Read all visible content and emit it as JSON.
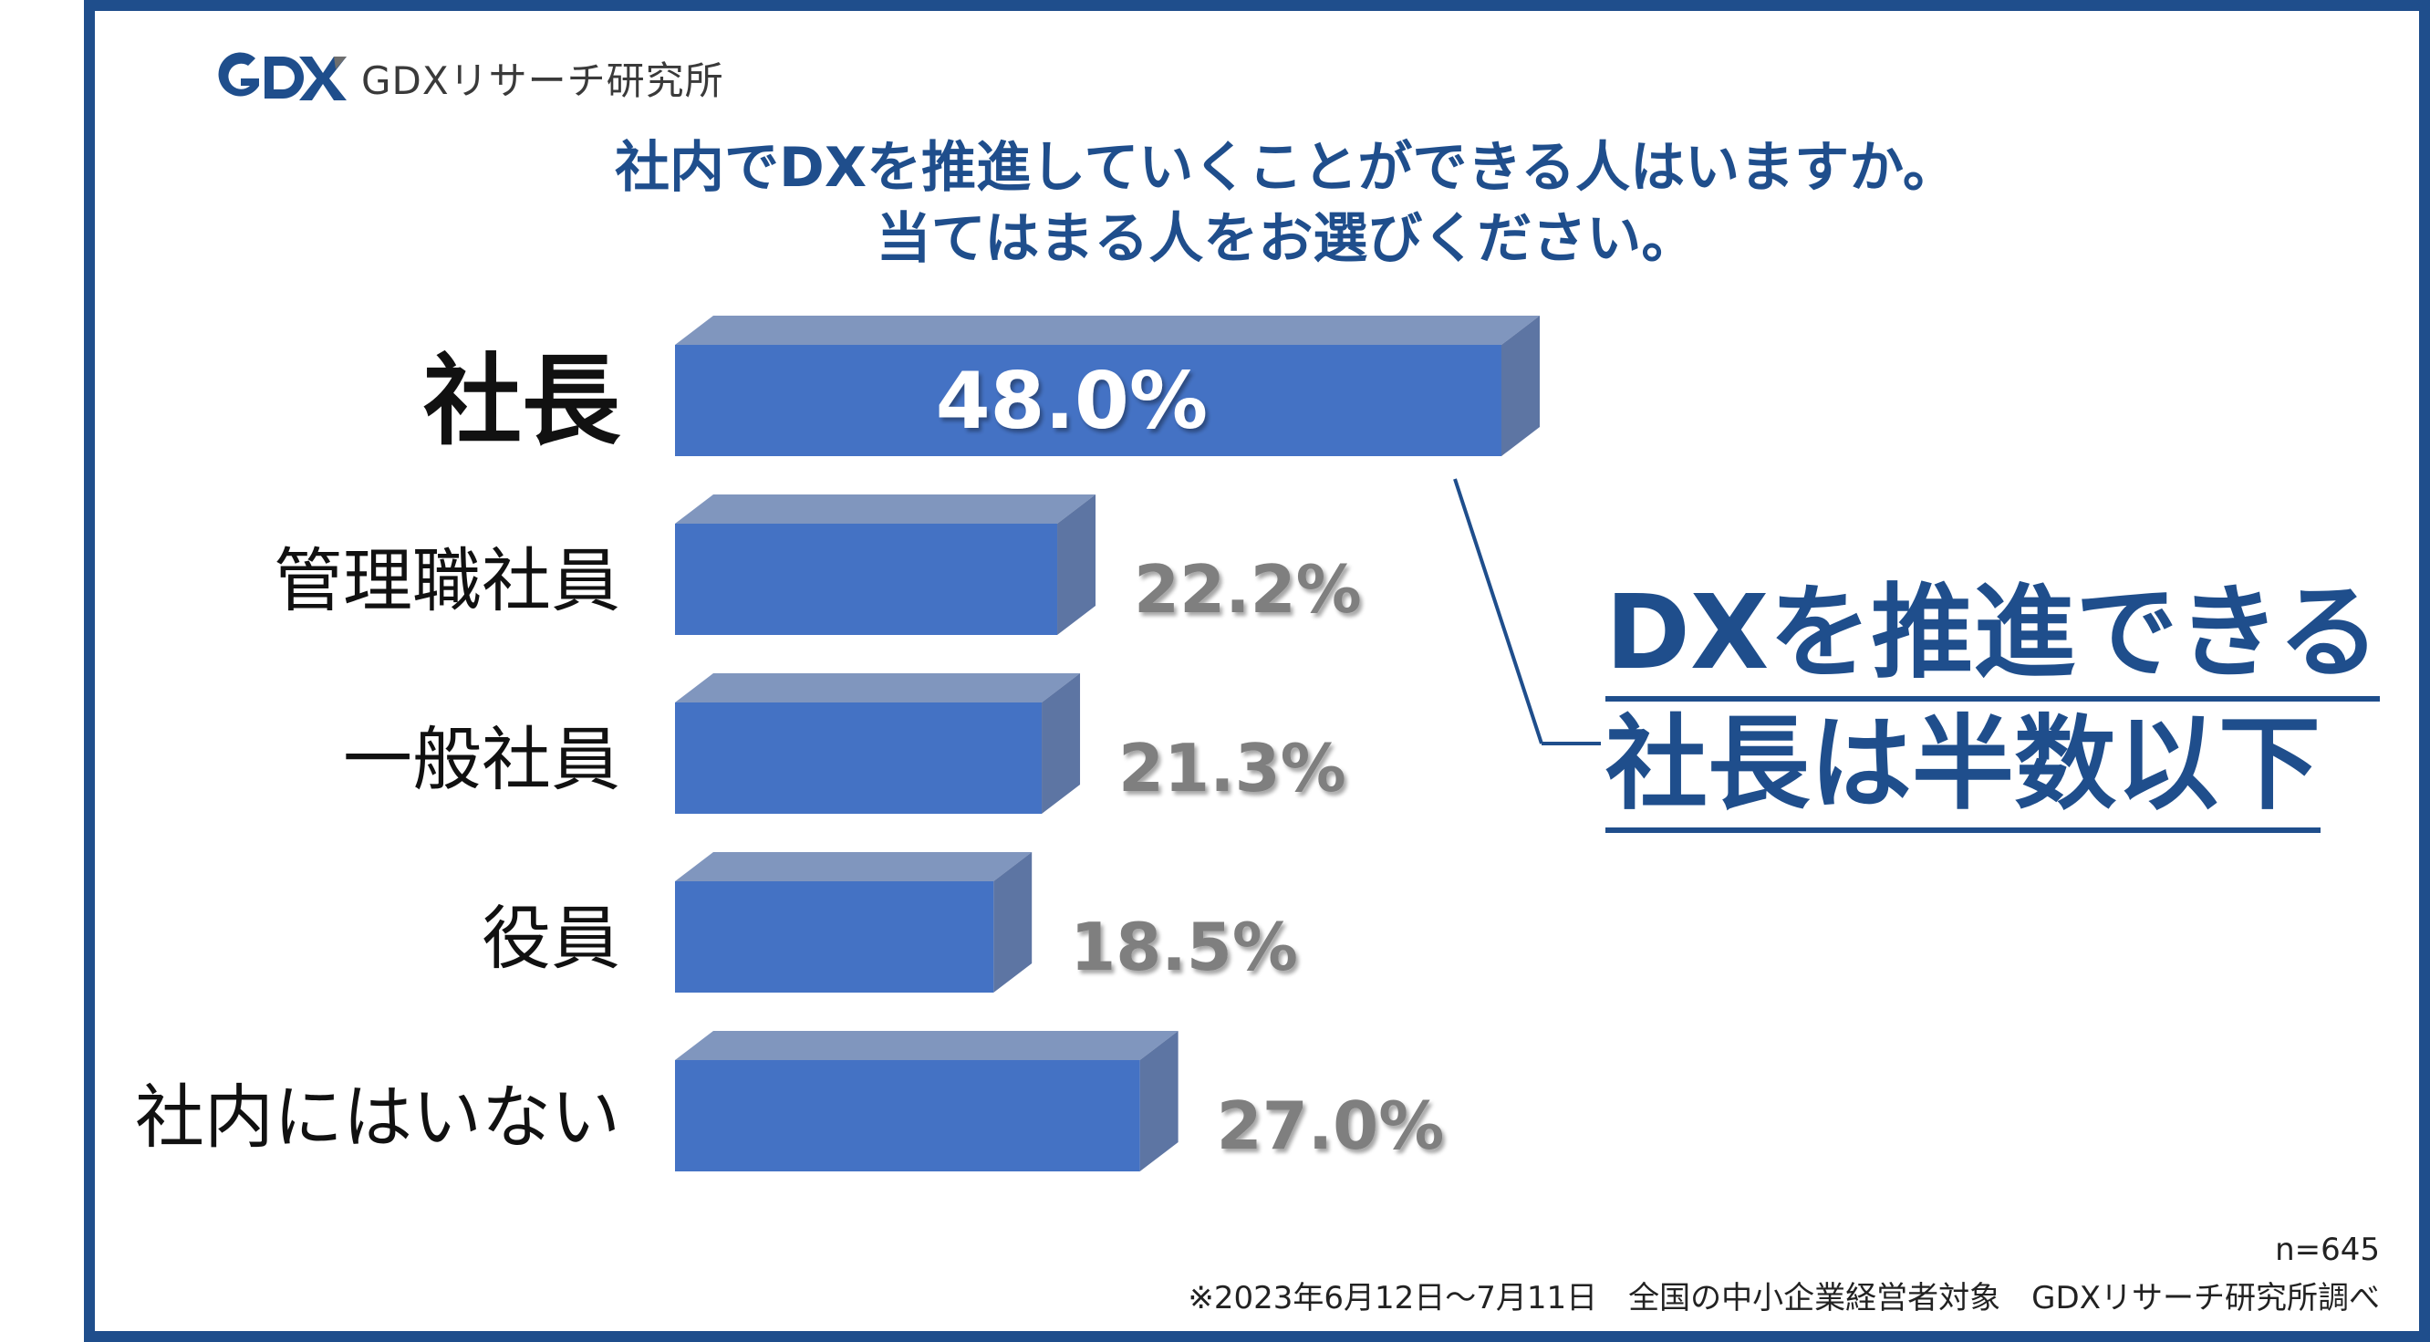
{
  "logo": {
    "mark": "GDX",
    "text": "GDXリサーチ研究所"
  },
  "title": {
    "line1": "社内でDXを推進していくことができる人はいますか。",
    "line2": "当てはまる人をお選びください。"
  },
  "callout": {
    "line1": "DXを推進できる",
    "line2": "社長は半数以下"
  },
  "footnote": {
    "n": "n=645",
    "source": "※2023年6月12日～7月11日　全国の中小企業経営者対象　GDXリサーチ研究所調べ"
  },
  "colors": {
    "accent": "#1F4E8C",
    "bar_front": "#4472C4",
    "bar_top": "#8096BE",
    "bar_side": "#5D75A3",
    "value_label_gray": "#7F7F7F"
  },
  "chart_data": {
    "type": "bar",
    "orientation": "horizontal",
    "categories": [
      "社長",
      "管理職社員",
      "一般社員",
      "役員",
      "社内にはいない"
    ],
    "values": [
      48.0,
      22.2,
      21.3,
      18.5,
      27.0
    ],
    "value_labels": [
      "48.0%",
      "22.2%",
      "21.3%",
      "18.5%",
      "27.0%"
    ],
    "highlight_category": "社長",
    "unit": "%"
  }
}
